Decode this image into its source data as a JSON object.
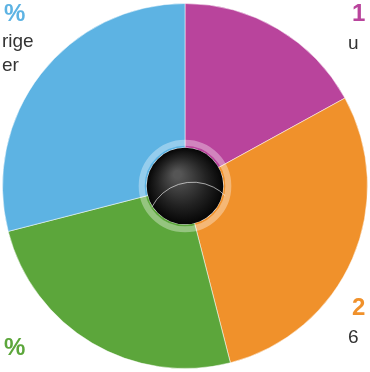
{
  "chart_data": {
    "type": "doughnut",
    "categories": [
      null,
      null,
      null,
      null
    ],
    "values": [
      17,
      29,
      25,
      29
    ],
    "colors": [
      "#b9449c",
      "#f0912b",
      "#5ca63b",
      "#5db3e3"
    ],
    "annotations": [
      "%",
      "rige",
      "er",
      "1",
      "u",
      "2",
      "6",
      "%"
    ]
  }
}
